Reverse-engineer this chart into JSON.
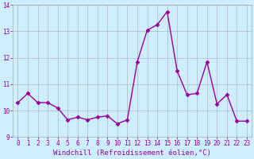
{
  "x": [
    0,
    1,
    2,
    3,
    4,
    5,
    6,
    7,
    8,
    9,
    10,
    11,
    12,
    13,
    14,
    15,
    16,
    17,
    18,
    19,
    20,
    21,
    22,
    23
  ],
  "y": [
    10.3,
    10.65,
    10.3,
    10.3,
    10.1,
    9.65,
    9.75,
    9.65,
    9.75,
    9.8,
    9.5,
    9.65,
    11.85,
    13.05,
    13.25,
    13.75,
    11.5,
    10.6,
    10.65,
    11.85,
    10.25,
    10.6,
    9.6,
    9.6
  ],
  "line_color": "#990099",
  "marker": "D",
  "marker_size": 2.5,
  "bg_color": "#cceeff",
  "grid_color": "#aaaaaa",
  "xlabel": "Windchill (Refroidissement éolien,°C)",
  "ylim": [
    9,
    14
  ],
  "xlim_min": -0.5,
  "xlim_max": 23.5,
  "yticks": [
    9,
    10,
    11,
    12,
    13,
    14
  ],
  "xticks": [
    0,
    1,
    2,
    3,
    4,
    5,
    6,
    7,
    8,
    9,
    10,
    11,
    12,
    13,
    14,
    15,
    16,
    17,
    18,
    19,
    20,
    21,
    22,
    23
  ],
  "font_color": "#990099",
  "tick_fontsize": 5.5,
  "label_fontsize": 6.5,
  "linewidth": 1.0
}
